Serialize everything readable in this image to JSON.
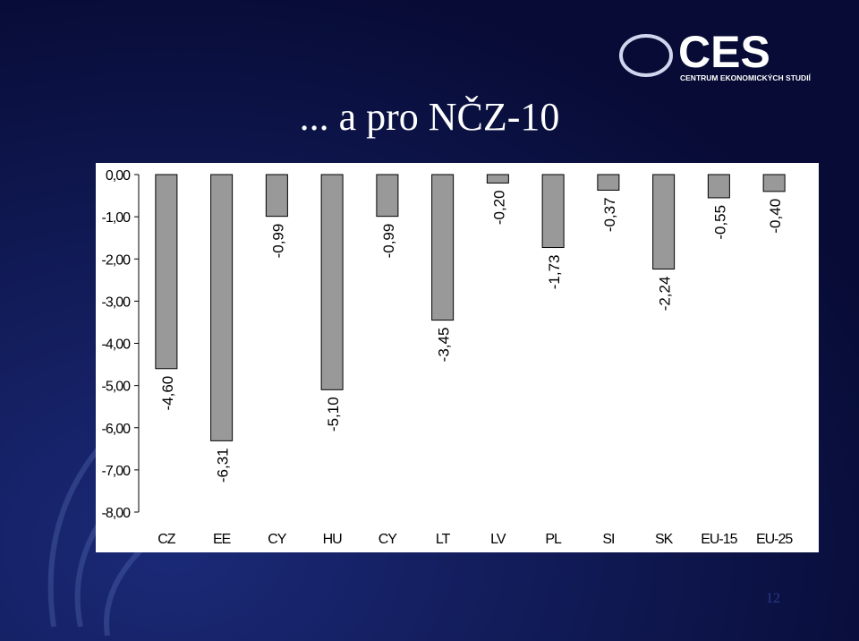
{
  "header": {
    "title": "... a pro NČZ-10",
    "logo": "CES",
    "logo_subtitle": "CENTRUM EKONOMICKÝCH STUDIÍ"
  },
  "chart_data": {
    "type": "bar",
    "categories": [
      "CZ",
      "EE",
      "CY",
      "HU",
      "CY",
      "LT",
      "LV",
      "PL",
      "SI",
      "SK",
      "EU-15",
      "EU-25"
    ],
    "values": [
      -4.6,
      -6.31,
      -0.99,
      -5.1,
      -0.99,
      -3.45,
      -0.2,
      -1.73,
      -0.37,
      -2.24,
      -0.55,
      -0.4
    ],
    "value_labels": [
      "-4,60",
      "-6,31",
      "-0,99",
      "-5,10",
      "-0,99",
      "-3,45",
      "-0,20",
      "-1,73",
      "-0,37",
      "-2,24",
      "-0,55",
      "-0,40"
    ],
    "color": "#999999",
    "ylim": [
      -8,
      0
    ],
    "yticks": [
      {
        "value": 0,
        "label": "0,00"
      },
      {
        "value": -1,
        "label": "-1,00"
      },
      {
        "value": -2,
        "label": "-2,00"
      },
      {
        "value": -3,
        "label": "-3,00"
      },
      {
        "value": -4,
        "label": "-4,00"
      },
      {
        "value": -5,
        "label": "-5,00"
      },
      {
        "value": -6,
        "label": "-6,00"
      },
      {
        "value": -7,
        "label": "-7,00"
      },
      {
        "value": -8,
        "label": "-8,00"
      }
    ],
    "grid": false
  },
  "footer": {
    "page_number": "12"
  }
}
